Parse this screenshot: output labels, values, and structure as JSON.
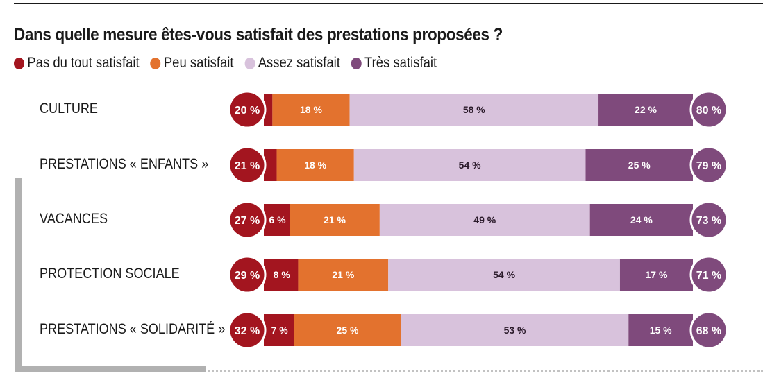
{
  "chart_data": {
    "type": "bar",
    "orientation": "horizontal-stacked-diverging",
    "title": "Dans quelle mesure êtes-vous satisfait des prestations proposées ?",
    "xlabel": "",
    "ylabel": "",
    "unit": "%",
    "legend_position": "top-left",
    "legend": [
      {
        "name": "Pas du tout satisfait",
        "color": "#a3151f"
      },
      {
        "name": "Peu satisfait",
        "color": "#e3722e"
      },
      {
        "name": "Assez satisfait",
        "color": "#d8c2dc"
      },
      {
        "name": "Très satisfait",
        "color": "#7f4a7c"
      }
    ],
    "categories": [
      "CULTURE",
      "PRESTATIONS « ENFANTS »",
      "VACANCES",
      "PROTECTION SOCIALE",
      "PRESTATIONS « SOLIDARITÉ »"
    ],
    "series": [
      {
        "name": "Pas du tout satisfait",
        "values": [
          2,
          3,
          6,
          8,
          7
        ],
        "labels": [
          "",
          "",
          "6 %",
          "8 %",
          "7 %"
        ]
      },
      {
        "name": "Peu satisfait",
        "values": [
          18,
          18,
          21,
          21,
          25
        ],
        "labels": [
          "18 %",
          "18 %",
          "21 %",
          "21 %",
          "25 %"
        ]
      },
      {
        "name": "Assez satisfait",
        "values": [
          58,
          54,
          49,
          54,
          53
        ],
        "labels": [
          "58 %",
          "54 %",
          "49 %",
          "54 %",
          "53 %"
        ]
      },
      {
        "name": "Très satisfait",
        "values": [
          22,
          25,
          24,
          17,
          15
        ],
        "labels": [
          "22 %",
          "25 %",
          "24 %",
          "17 %",
          "15 %"
        ]
      }
    ],
    "totals_unsatisfied": [
      "20 %",
      "21 %",
      "27 %",
      "29 %",
      "32 %"
    ],
    "totals_satisfied": [
      "80 %",
      "79 %",
      "73 %",
      "71 %",
      "68 %"
    ],
    "xlim": [
      0,
      100
    ],
    "grid": false
  }
}
